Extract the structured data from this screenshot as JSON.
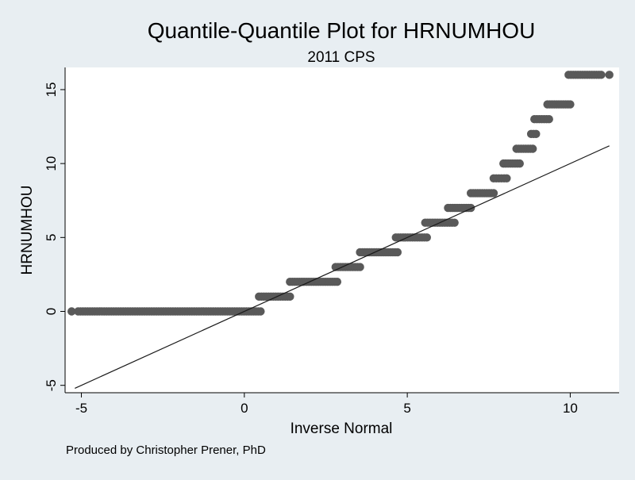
{
  "chart_data": {
    "type": "scatter",
    "title": "Quantile-Quantile Plot for HRNUMHOU",
    "subtitle": "2011 CPS",
    "xlabel": "Inverse Normal",
    "ylabel": "HRNUMHOU",
    "note": "Produced by Christopher Prener, PhD",
    "xlim": [
      -5.5,
      11.5
    ],
    "ylim": [
      -5.5,
      16.5
    ],
    "x_ticks": [
      -5,
      0,
      5,
      10
    ],
    "y_ticks": [
      -5,
      0,
      5,
      10,
      15
    ],
    "x_tick_labels": [
      "-5",
      "0",
      "5",
      "10"
    ],
    "y_tick_labels": [
      "-5",
      "0",
      "5",
      "10",
      "15"
    ],
    "grid": false,
    "legend": "none",
    "marker_color": "#595959",
    "reference_line": {
      "x": [
        -5.2,
        11.2
      ],
      "y": [
        -5.2,
        11.2
      ],
      "color": "#1a1a1a"
    },
    "series": [
      {
        "values_as_runs": [
          {
            "y": 0,
            "x_start": -5.1,
            "x_end": 0.5,
            "isolated_x": [
              -5.3
            ]
          },
          {
            "y": 1,
            "x_start": 0.45,
            "x_end": 1.4
          },
          {
            "y": 2,
            "x_start": 1.4,
            "x_end": 2.85
          },
          {
            "y": 3,
            "x_start": 2.8,
            "x_end": 3.55
          },
          {
            "y": 4,
            "x_start": 3.55,
            "x_end": 4.7
          },
          {
            "y": 5,
            "x_start": 4.65,
            "x_end": 5.6
          },
          {
            "y": 6,
            "x_start": 5.55,
            "x_end": 6.45
          },
          {
            "y": 7,
            "x_start": 6.25,
            "x_end": 6.95
          },
          {
            "y": 8,
            "x_start": 6.95,
            "x_end": 7.65
          },
          {
            "y": 9,
            "x_start": 7.65,
            "x_end": 8.05
          },
          {
            "y": 10,
            "x_start": 7.95,
            "x_end": 8.45
          },
          {
            "y": 11,
            "x_start": 8.35,
            "x_end": 8.85
          },
          {
            "y": 12,
            "x_start": 8.8,
            "x_end": 8.95
          },
          {
            "y": 13,
            "x_start": 8.9,
            "x_end": 9.35
          },
          {
            "y": 14,
            "x_start": 9.3,
            "x_end": 10.0
          },
          {
            "y": 16,
            "x_start": 9.95,
            "x_end": 10.95,
            "isolated_x": [
              11.2
            ]
          }
        ]
      }
    ]
  }
}
